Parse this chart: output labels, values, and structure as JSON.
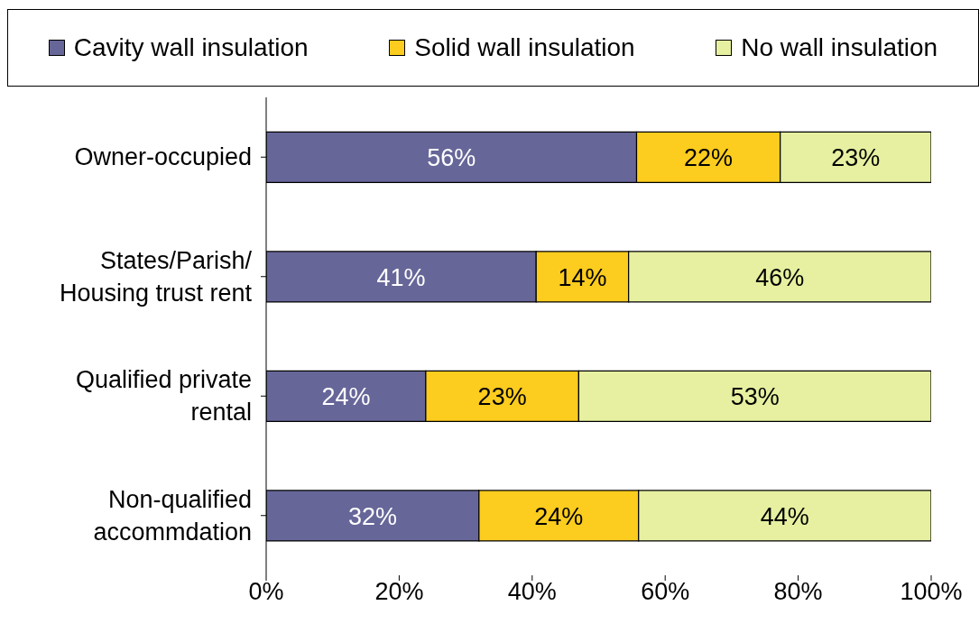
{
  "chart_data": {
    "type": "bar",
    "orientation": "horizontal",
    "stacked": true,
    "categories": [
      "Owner-occupied",
      "States/Parish/ Housing trust rent",
      "Qualified private rental",
      "Non-qualified accommdation"
    ],
    "series": [
      {
        "name": "Cavity wall insulation",
        "color": "#666699",
        "values": [
          55.7,
          40.6,
          24,
          32
        ],
        "value_labels": [
          "56%",
          "41%",
          "24%",
          "32%"
        ]
      },
      {
        "name": "Solid wall insulation",
        "color": "#fccc1e",
        "values": [
          21.6,
          13.9,
          23,
          24
        ],
        "value_labels": [
          "22%",
          "14%",
          "23%",
          "24%"
        ]
      },
      {
        "name": "No wall insulation",
        "color": "#e6f0a0",
        "values": [
          22.7,
          45.5,
          53,
          44
        ],
        "value_labels": [
          "23%",
          "46%",
          "53%",
          "44%"
        ]
      }
    ],
    "xlim": [
      0,
      100
    ],
    "xticks": [
      {
        "value": 0,
        "label": "0%"
      },
      {
        "value": 20,
        "label": "20%"
      },
      {
        "value": 40,
        "label": "40%"
      },
      {
        "value": 60,
        "label": "60%"
      },
      {
        "value": 80,
        "label": "80%"
      },
      {
        "value": 100,
        "label": "100%"
      }
    ],
    "legend": "top",
    "grid": false
  }
}
